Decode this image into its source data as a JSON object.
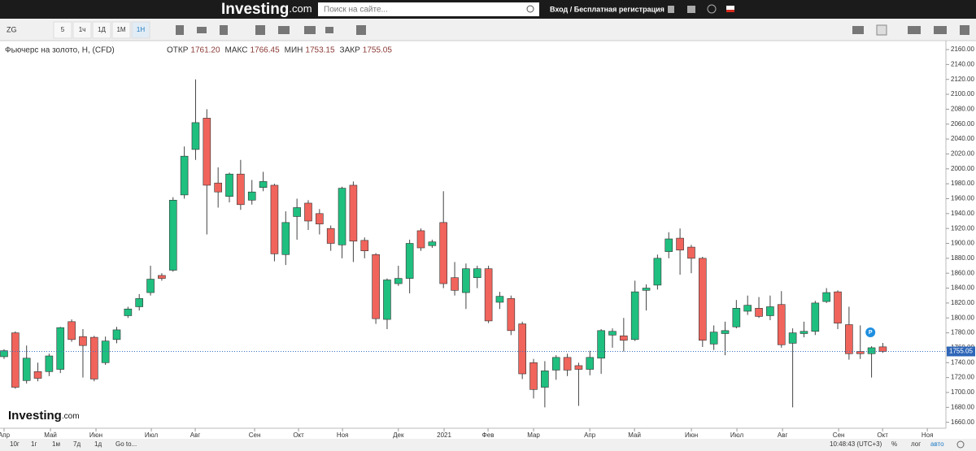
{
  "page": {
    "header": {
      "logo": "Investing",
      "logo_suffix": ".com",
      "search": "Поиск на сайте...",
      "login": "Вход / Бесплатная регистрация"
    },
    "toolbar": {
      "symbol": "ZG",
      "intervals": [
        "5",
        "1ч",
        "1Д",
        "1М",
        "1Н"
      ]
    },
    "footer": {
      "ranges": [
        "10г",
        "1г",
        "1м",
        "7д",
        "1д"
      ],
      "goto": "Go to...",
      "time": "10:48:43 (UTC+3)",
      "options": [
        "%",
        "лог",
        "авто"
      ]
    }
  },
  "chart_data": {
    "type": "candlestick",
    "title": "Фьючерс на золото, Н, (CFD)",
    "legend": [
      {
        "label": "ОТКР",
        "value": "1761.20"
      },
      {
        "label": "МАКС",
        "value": "1766.45"
      },
      {
        "label": "МИН",
        "value": "1753.15"
      },
      {
        "label": "ЗАКР",
        "value": "1755.05"
      }
    ],
    "last_price_label": "1755.05",
    "watermark": "Investing",
    "watermark_suffix": ".com",
    "marker": "P",
    "up_color": "#1fbf80",
    "down_color": "#f0645c",
    "open": [
      1748,
      1780,
      1716,
      1728,
      1728,
      1731,
      1795,
      1775,
      1774,
      1740,
      1771,
      1803,
      1815,
      1834,
      1857,
      1864,
      1965,
      2026,
      2068,
      1981,
      1963,
      1993,
      1958,
      1975,
      1978,
      1885,
      1936,
      1954,
      1940,
      1920,
      1898,
      1978,
      1904,
      1885,
      1798,
      1846,
      1853,
      1917,
      1897,
      1928,
      1854,
      1834,
      1854,
      1866,
      1821,
      1826,
      1792,
      1740,
      1707,
      1730,
      1747,
      1736,
      1731,
      1746,
      1777,
      1776,
      1771,
      1837,
      1844,
      1889,
      1907,
      1895,
      1880,
      1765,
      1779,
      1788,
      1809,
      1813,
      1803,
      1818,
      1766,
      1779,
      1782,
      1822,
      1835,
      1791,
      1755,
      1752,
      1761.2
    ],
    "high": [
      1758,
      1782,
      1763,
      1740,
      1752,
      1788,
      1798,
      1785,
      1776,
      1775,
      1788,
      1815,
      1832,
      1870,
      1860,
      1962,
      2030,
      2120,
      2080,
      2002,
      1995,
      2012,
      1985,
      1996,
      1980,
      1943,
      1960,
      1958,
      1946,
      1924,
      1976,
      1983,
      1908,
      1887,
      1853,
      1870,
      1905,
      1920,
      1905,
      1970,
      1875,
      1873,
      1870,
      1870,
      1835,
      1830,
      1795,
      1745,
      1742,
      1750,
      1752,
      1740,
      1756,
      1785,
      1786,
      1800,
      1850,
      1845,
      1885,
      1915,
      1920,
      1898,
      1882,
      1790,
      1795,
      1824,
      1830,
      1828,
      1830,
      1836,
      1786,
      1795,
      1823,
      1840,
      1837,
      1815,
      1790,
      1762,
      1766.45
    ],
    "low": [
      1745,
      1705,
      1712,
      1715,
      1722,
      1726,
      1768,
      1720,
      1715,
      1737,
      1766,
      1800,
      1810,
      1830,
      1850,
      1862,
      1960,
      2012,
      1912,
      1948,
      1955,
      1945,
      1952,
      1970,
      1876,
      1871,
      1905,
      1918,
      1912,
      1890,
      1880,
      1875,
      1880,
      1792,
      1785,
      1843,
      1833,
      1890,
      1894,
      1840,
      1830,
      1812,
      1840,
      1793,
      1812,
      1777,
      1718,
      1692,
      1680,
      1717,
      1722,
      1682,
      1723,
      1725,
      1760,
      1755,
      1769,
      1810,
      1838,
      1880,
      1858,
      1860,
      1761,
      1757,
      1750,
      1786,
      1804,
      1800,
      1797,
      1760,
      1680,
      1774,
      1777,
      1820,
      1785,
      1744,
      1745,
      1720,
      1753.15
    ],
    "close": [
      1756,
      1707,
      1746,
      1719,
      1749,
      1787,
      1771,
      1763,
      1718,
      1769,
      1784,
      1812,
      1826,
      1852,
      1853,
      1958,
      2017,
      2062,
      1978,
      1969,
      1993,
      1952,
      1969,
      1983,
      1886,
      1928,
      1948,
      1930,
      1926,
      1900,
      1974,
      1903,
      1890,
      1799,
      1851,
      1853,
      1900,
      1894,
      1902,
      1846,
      1837,
      1866,
      1866,
      1796,
      1829,
      1783,
      1725,
      1704,
      1729,
      1747,
      1730,
      1731,
      1747,
      1783,
      1782,
      1770,
      1835,
      1840,
      1880,
      1906,
      1891,
      1880,
      1770,
      1781,
      1783,
      1813,
      1817,
      1802,
      1815,
      1764,
      1780,
      1782,
      1820,
      1834,
      1793,
      1752,
      1752,
      1760,
      1755.05
    ],
    "xlim": [
      -0.36,
      83.6
    ],
    "xticks": [
      {
        "value": 0,
        "label": "Апр"
      },
      {
        "value": 4.12,
        "label": "Май"
      },
      {
        "value": 8.16,
        "label": "Июн"
      },
      {
        "value": 13.07,
        "label": "Июл"
      },
      {
        "value": 16.97,
        "label": "Авг"
      },
      {
        "value": 22.24,
        "label": "Сен"
      },
      {
        "value": 26.14,
        "label": "Окт"
      },
      {
        "value": 30.04,
        "label": "Ноя"
      },
      {
        "value": 35,
        "label": "Дек"
      },
      {
        "value": 39.06,
        "label": "2021"
      },
      {
        "value": 42.96,
        "label": "Фев"
      },
      {
        "value": 47,
        "label": "Мар"
      },
      {
        "value": 51.99,
        "label": "Апр"
      },
      {
        "value": 55.96,
        "label": "Май"
      },
      {
        "value": 61.01,
        "label": "Июн"
      },
      {
        "value": 65.05,
        "label": "Июл"
      },
      {
        "value": 69.1,
        "label": "Авг"
      },
      {
        "value": 74.08,
        "label": "Сен"
      },
      {
        "value": 77.98,
        "label": "Окт"
      },
      {
        "value": 81.95,
        "label": "Ноя"
      }
    ],
    "ylim": [
      1652,
      2172
    ],
    "yticks": [
      {
        "value": 1660,
        "label": "1660.00"
      },
      {
        "value": 1680,
        "label": "1680.00"
      },
      {
        "value": 1700,
        "label": "1700.00"
      },
      {
        "value": 1720,
        "label": "1720.00"
      },
      {
        "value": 1740,
        "label": "1740.00"
      },
      {
        "value": 1760,
        "label": "1760.00"
      },
      {
        "value": 1780,
        "label": "1780.00"
      },
      {
        "value": 1800,
        "label": "1800.00"
      },
      {
        "value": 1820,
        "label": "1820.00"
      },
      {
        "value": 1840,
        "label": "1840.00"
      },
      {
        "value": 1860,
        "label": "1860.00"
      },
      {
        "value": 1880,
        "label": "1880.00"
      },
      {
        "value": 1900,
        "label": "1900.00"
      },
      {
        "value": 1920,
        "label": "1920.00"
      },
      {
        "value": 1940,
        "label": "1940.00"
      },
      {
        "value": 1960,
        "label": "1960.00"
      },
      {
        "value": 1980,
        "label": "1980.00"
      },
      {
        "value": 2000,
        "label": "2000.00"
      },
      {
        "value": 2020,
        "label": "2020.00"
      },
      {
        "value": 2040,
        "label": "2040.00"
      },
      {
        "value": 2060,
        "label": "2060.00"
      },
      {
        "value": 2080,
        "label": "2080.00"
      },
      {
        "value": 2100,
        "label": "2100.00"
      },
      {
        "value": 2120,
        "label": "2120.00"
      },
      {
        "value": 2140,
        "label": "2140.00"
      },
      {
        "value": 2160,
        "label": "2160.00"
      }
    ],
    "last_price": 1755.05,
    "grid": false
  }
}
